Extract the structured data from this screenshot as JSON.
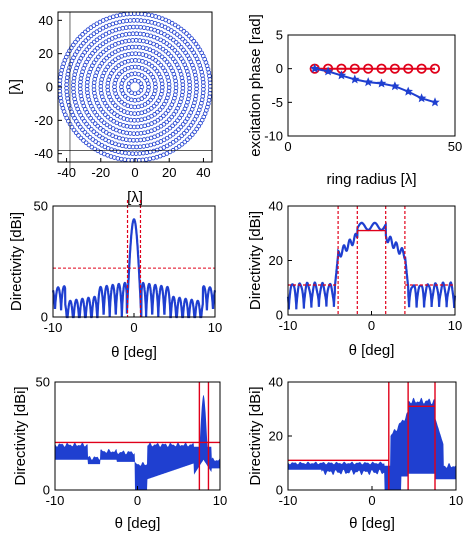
{
  "chart_data": [
    {
      "id": "p1",
      "type": "scatter",
      "title": "",
      "xlabel": "[λ]",
      "ylabel": "[λ]",
      "xlim": [
        -45,
        45
      ],
      "ylim": [
        -45,
        45
      ],
      "xticks": [
        -40,
        -20,
        0,
        20,
        40
      ],
      "yticks": [
        -40,
        -20,
        0,
        20,
        40
      ],
      "aspect": "equal",
      "marker": "open circle",
      "marker_color": "#1f3fd0",
      "ring_radii": [
        4,
        8,
        12,
        16,
        20,
        24,
        28,
        32,
        36,
        40,
        44
      ],
      "cursor_x": -38,
      "cursor_y": -38
    },
    {
      "id": "p2",
      "type": "line",
      "title": "",
      "xlabel": "ring radius [λ]",
      "ylabel": "excitation phase [rad]",
      "xlim": [
        0,
        50
      ],
      "ylim": [
        -10,
        5
      ],
      "xticks": [
        0,
        50
      ],
      "yticks": [
        -10,
        -5,
        0,
        5
      ],
      "series": [
        {
          "color": "#e0001a",
          "marker": "open circle",
          "x": [
            8,
            12,
            16,
            20,
            24,
            28,
            32,
            36,
            40,
            44
          ],
          "y": [
            0,
            0,
            0,
            0,
            0,
            0,
            0,
            0,
            0,
            0
          ]
        },
        {
          "color": "#1f3fd0",
          "marker": "star",
          "x": [
            8,
            12,
            16,
            20,
            24,
            28,
            32,
            36,
            40,
            44
          ],
          "y": [
            0,
            -0.4,
            -1.0,
            -1.6,
            -2.0,
            -2.2,
            -2.6,
            -3.4,
            -4.4,
            -5.0
          ]
        }
      ]
    },
    {
      "id": "p3",
      "type": "line",
      "title": "",
      "xlabel": "θ [deg]",
      "ylabel": "Directivity [dBi]",
      "xlim": [
        -10,
        10
      ],
      "ylim": [
        0,
        50
      ],
      "xticks": [
        -10,
        0,
        10
      ],
      "yticks": [
        0,
        50
      ],
      "pattern": {
        "color": "#1f3fd0",
        "peak": 44,
        "beamwidth_deg": 0.42,
        "sidelobe_level": 22
      },
      "mask": {
        "color": "#e0001a",
        "style": "dashed",
        "sidelobe_limit": 22,
        "main_beam_edges": [
          -0.8,
          0.8
        ],
        "main_beam_top": 50
      }
    },
    {
      "id": "p4",
      "type": "line",
      "title": "",
      "xlabel": "θ [deg]",
      "ylabel": "Directivity [dBi]",
      "xlim": [
        -10,
        10
      ],
      "ylim": [
        0,
        40
      ],
      "xticks": [
        -10,
        0,
        10
      ],
      "yticks": [
        0,
        20,
        40
      ],
      "pattern": {
        "color": "#1f3fd0",
        "flat_top": 31,
        "flat_top_edges": [
          -4,
          4
        ],
        "sidelobe_level": 11
      },
      "mask": {
        "color": "#e0001a",
        "style": "dashed",
        "sidelobe_limit": 11,
        "flat_top_limit": 31,
        "inner_edges": [
          -1.7,
          1.7
        ],
        "outer_edges": [
          -4,
          4
        ]
      }
    },
    {
      "id": "p5",
      "type": "area",
      "title": "",
      "xlabel": "θ [deg]",
      "ylabel": "Directivity [dBi]",
      "xlim": [
        -10,
        10
      ],
      "ylim": [
        0,
        50
      ],
      "xticks": [
        -10,
        0,
        10
      ],
      "yticks": [
        0,
        50
      ],
      "fill_color": "#1f3fd0",
      "beam_center": 8,
      "beam_peak": 44,
      "mask": {
        "color": "#e0001a",
        "level": 22,
        "edges": [
          7.5,
          8.6
        ]
      }
    },
    {
      "id": "p6",
      "type": "area",
      "title": "",
      "xlabel": "θ [deg]",
      "ylabel": "Directivity [dBi]",
      "xlim": [
        -10,
        10
      ],
      "ylim": [
        0,
        40
      ],
      "xticks": [
        -10,
        0,
        10
      ],
      "yticks": [
        0,
        20,
        40
      ],
      "fill_color": "#1f3fd0",
      "flat_top_edges": [
        4.3,
        7.5
      ],
      "flat_top": 31,
      "mask": {
        "color": "#e0001a",
        "level": 11,
        "flat_top_limit": 31,
        "edges": [
          2,
          4.3,
          7.5
        ]
      }
    }
  ]
}
